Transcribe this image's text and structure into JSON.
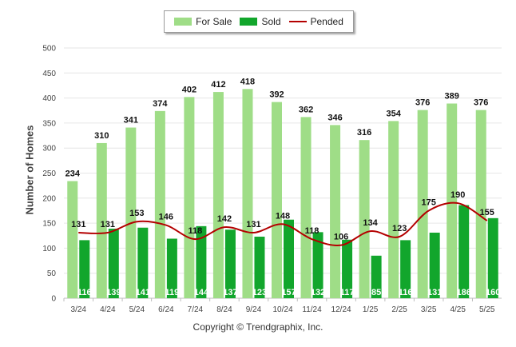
{
  "chart_data": {
    "type": "bar",
    "title": "",
    "xlabel": "",
    "ylabel": "Number of Homes",
    "ylim": [
      0,
      500
    ],
    "yticks": [
      0,
      50,
      100,
      150,
      200,
      250,
      300,
      350,
      400,
      450,
      500
    ],
    "grid": true,
    "legend_position": "top-center",
    "categories": [
      "3/24",
      "4/24",
      "5/24",
      "6/24",
      "7/24",
      "8/24",
      "9/24",
      "10/24",
      "11/24",
      "12/24",
      "1/25",
      "2/25",
      "3/25",
      "4/25",
      "5/25"
    ],
    "series": [
      {
        "name": "For Sale",
        "type": "bar",
        "color": "#9fdd87",
        "values": [
          234,
          310,
          341,
          374,
          402,
          412,
          418,
          392,
          362,
          346,
          316,
          354,
          376,
          389,
          376
        ]
      },
      {
        "name": "Sold",
        "type": "bar",
        "color": "#12a62c",
        "values": [
          116,
          139,
          141,
          119,
          144,
          137,
          123,
          157,
          132,
          117,
          85,
          116,
          131,
          186,
          160
        ]
      },
      {
        "name": "Pended",
        "type": "line",
        "color": "#b40000",
        "values": [
          131,
          131,
          153,
          146,
          118,
          142,
          131,
          148,
          118,
          106,
          134,
          123,
          175,
          190,
          155
        ]
      }
    ]
  },
  "footer": {
    "copyright": "Copyright © Trendgraphix, Inc."
  }
}
